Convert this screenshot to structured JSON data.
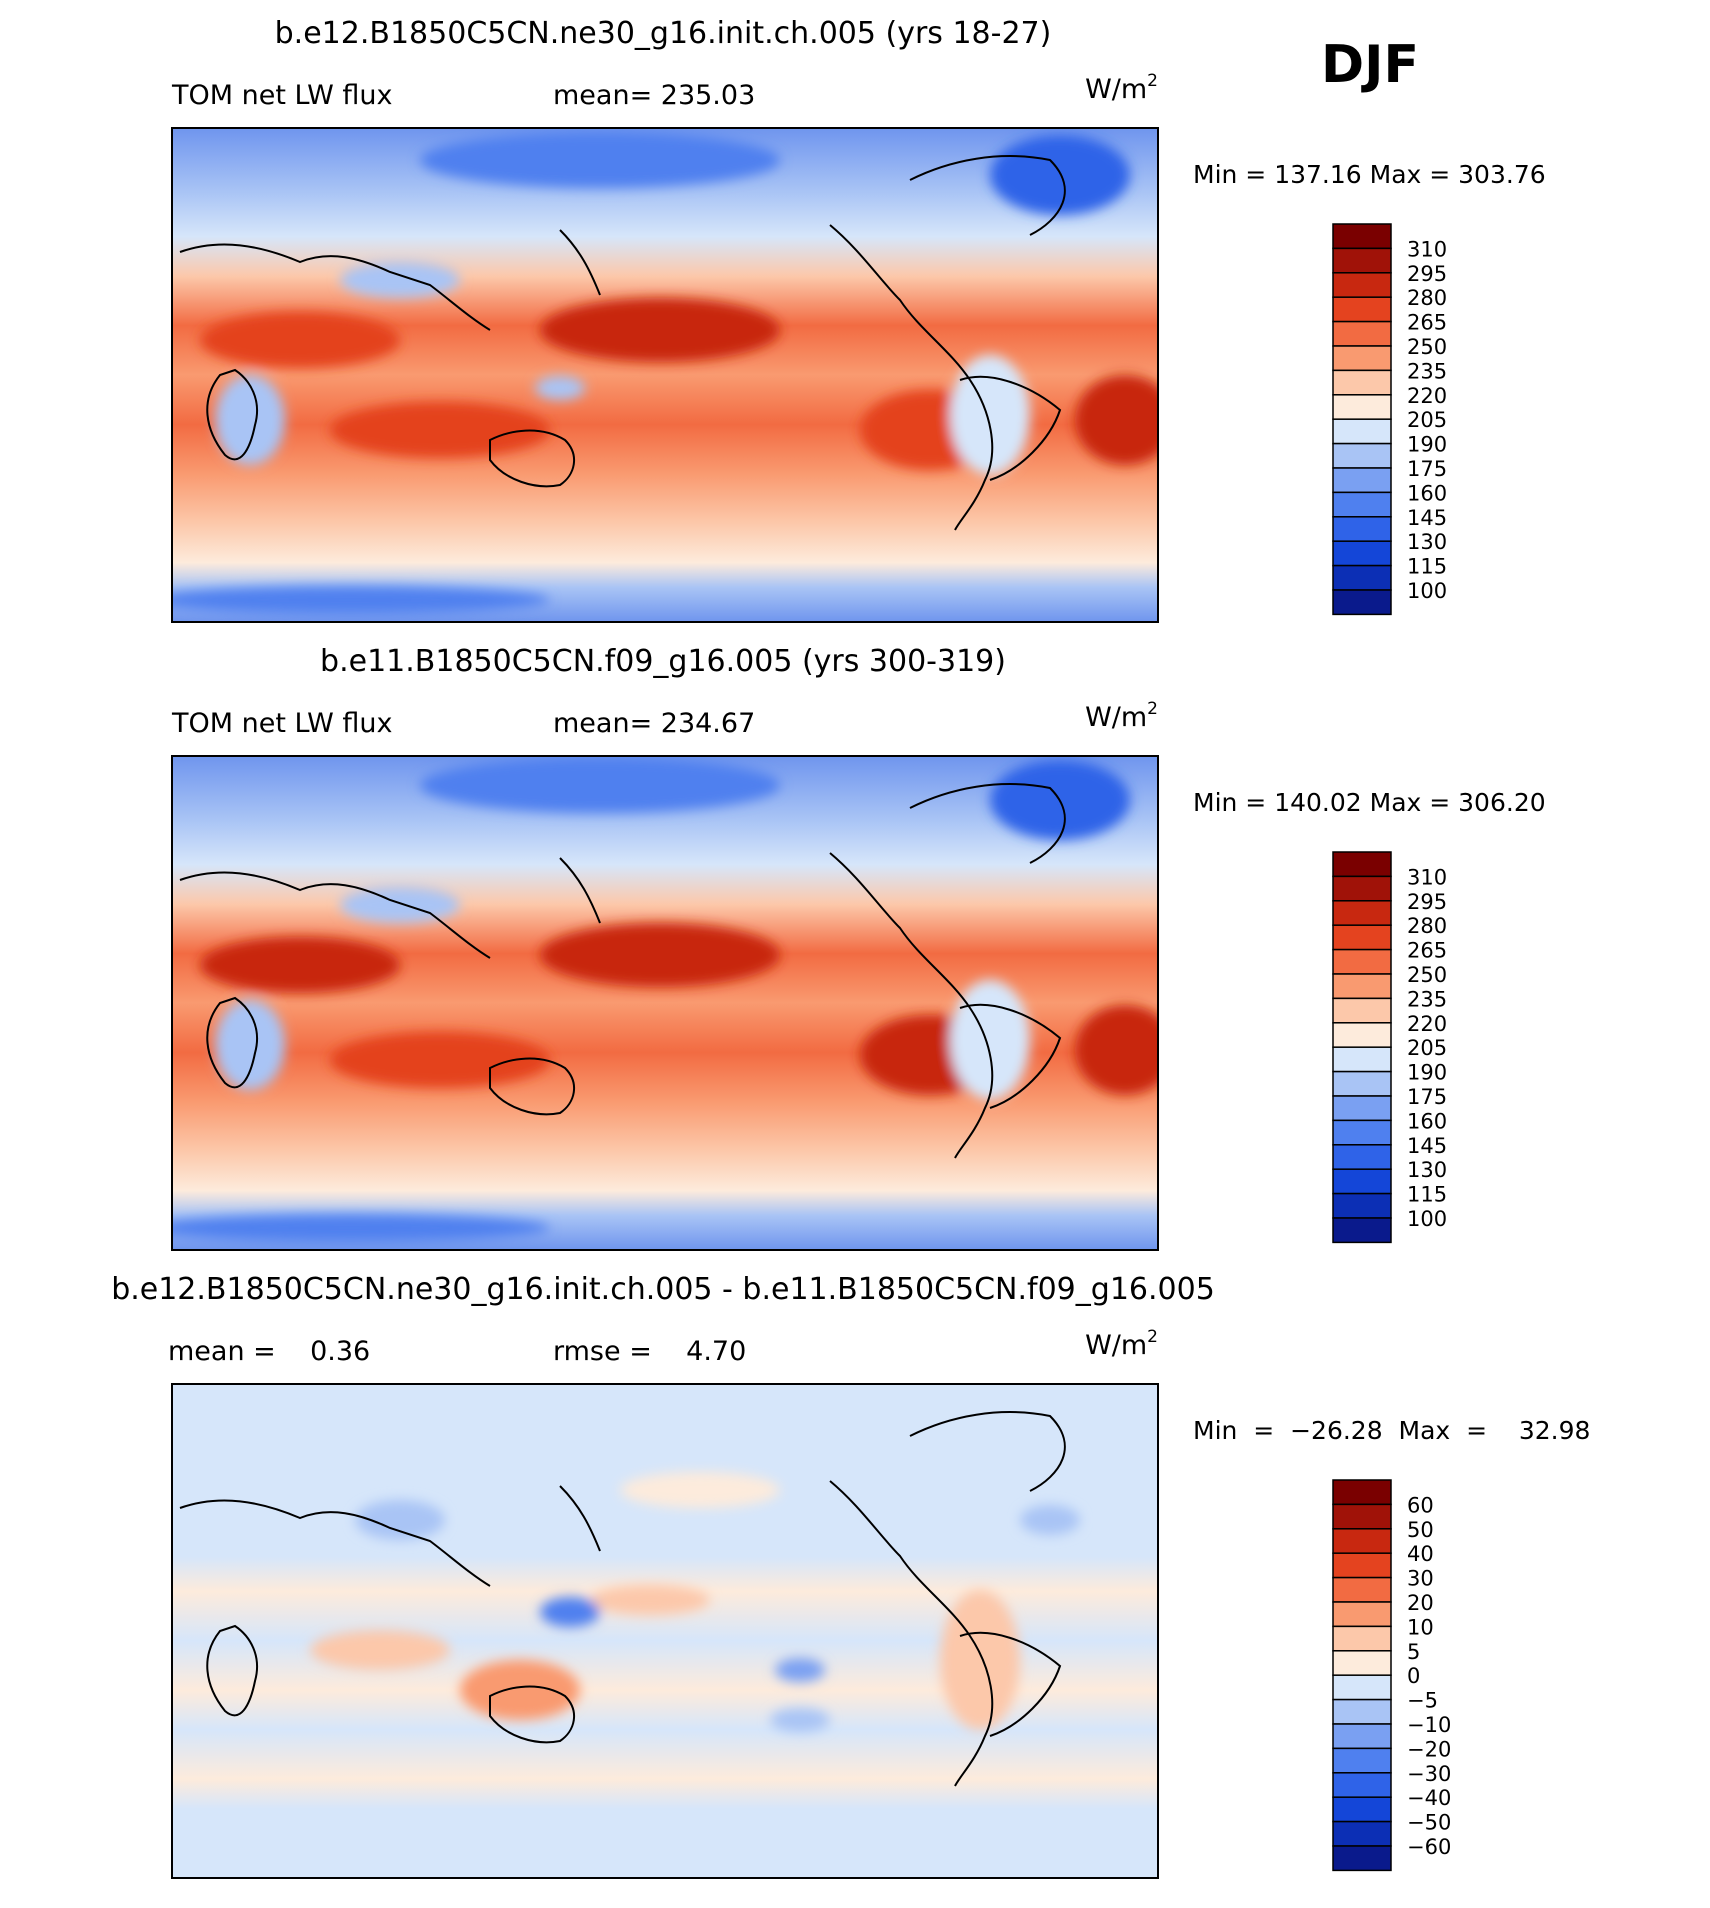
{
  "season": "DJF",
  "chart_data": [
    {
      "type": "heatmap",
      "title": "b.e12.B1850C5CN.ne30_g16.init.ch.005 (yrs 18-27)",
      "left_label": "TOM net LW flux",
      "stat_text": "mean= 235.03",
      "units": "W/m",
      "units_exp": "2",
      "minmax_text": "Min  =  137.16  Max  =  303.76",
      "min": 137.16,
      "max": 303.76,
      "mean": 235.03,
      "colorbar_levels": [
        "310",
        "295",
        "280",
        "265",
        "250",
        "235",
        "220",
        "205",
        "190",
        "175",
        "160",
        "145",
        "130",
        "115",
        "100"
      ]
    },
    {
      "type": "heatmap",
      "title": "b.e11.B1850C5CN.f09_g16.005 (yrs 300-319)",
      "left_label": "TOM net LW flux",
      "stat_text": "mean= 234.67",
      "units": "W/m",
      "units_exp": "2",
      "minmax_text": "Min  =  140.02  Max  =  306.20",
      "min": 140.02,
      "max": 306.2,
      "mean": 234.67,
      "colorbar_levels": [
        "310",
        "295",
        "280",
        "265",
        "250",
        "235",
        "220",
        "205",
        "190",
        "175",
        "160",
        "145",
        "130",
        "115",
        "100"
      ]
    },
    {
      "type": "heatmap",
      "title": "b.e12.B1850C5CN.ne30_g16.init.ch.005 - b.e11.B1850C5CN.f09_g16.005",
      "left_label": "mean =    0.36",
      "stat_text": "rmse =    4.70",
      "units": "W/m",
      "units_exp": "2",
      "minmax_text": "Min  =  −26.28  Max  =    32.98",
      "min": -26.28,
      "max": 32.98,
      "mean": 0.36,
      "rmse": 4.7,
      "colorbar_levels": [
        "60",
        "50",
        "40",
        "30",
        "20",
        "10",
        "5",
        "0",
        "−5",
        "−10",
        "−20",
        "−30",
        "−40",
        "−50",
        "−60"
      ]
    }
  ],
  "colors": {
    "scale": [
      "#0a1a8c",
      "#0c2fb5",
      "#1446d8",
      "#2f63e8",
      "#4f80ef",
      "#7aa0f2",
      "#a9c4f5",
      "#d6e6fa",
      "#fdebdc",
      "#fcc8aa",
      "#f99a70",
      "#f26b42",
      "#e4431f",
      "#c82810",
      "#a01208",
      "#7a0000"
    ]
  }
}
